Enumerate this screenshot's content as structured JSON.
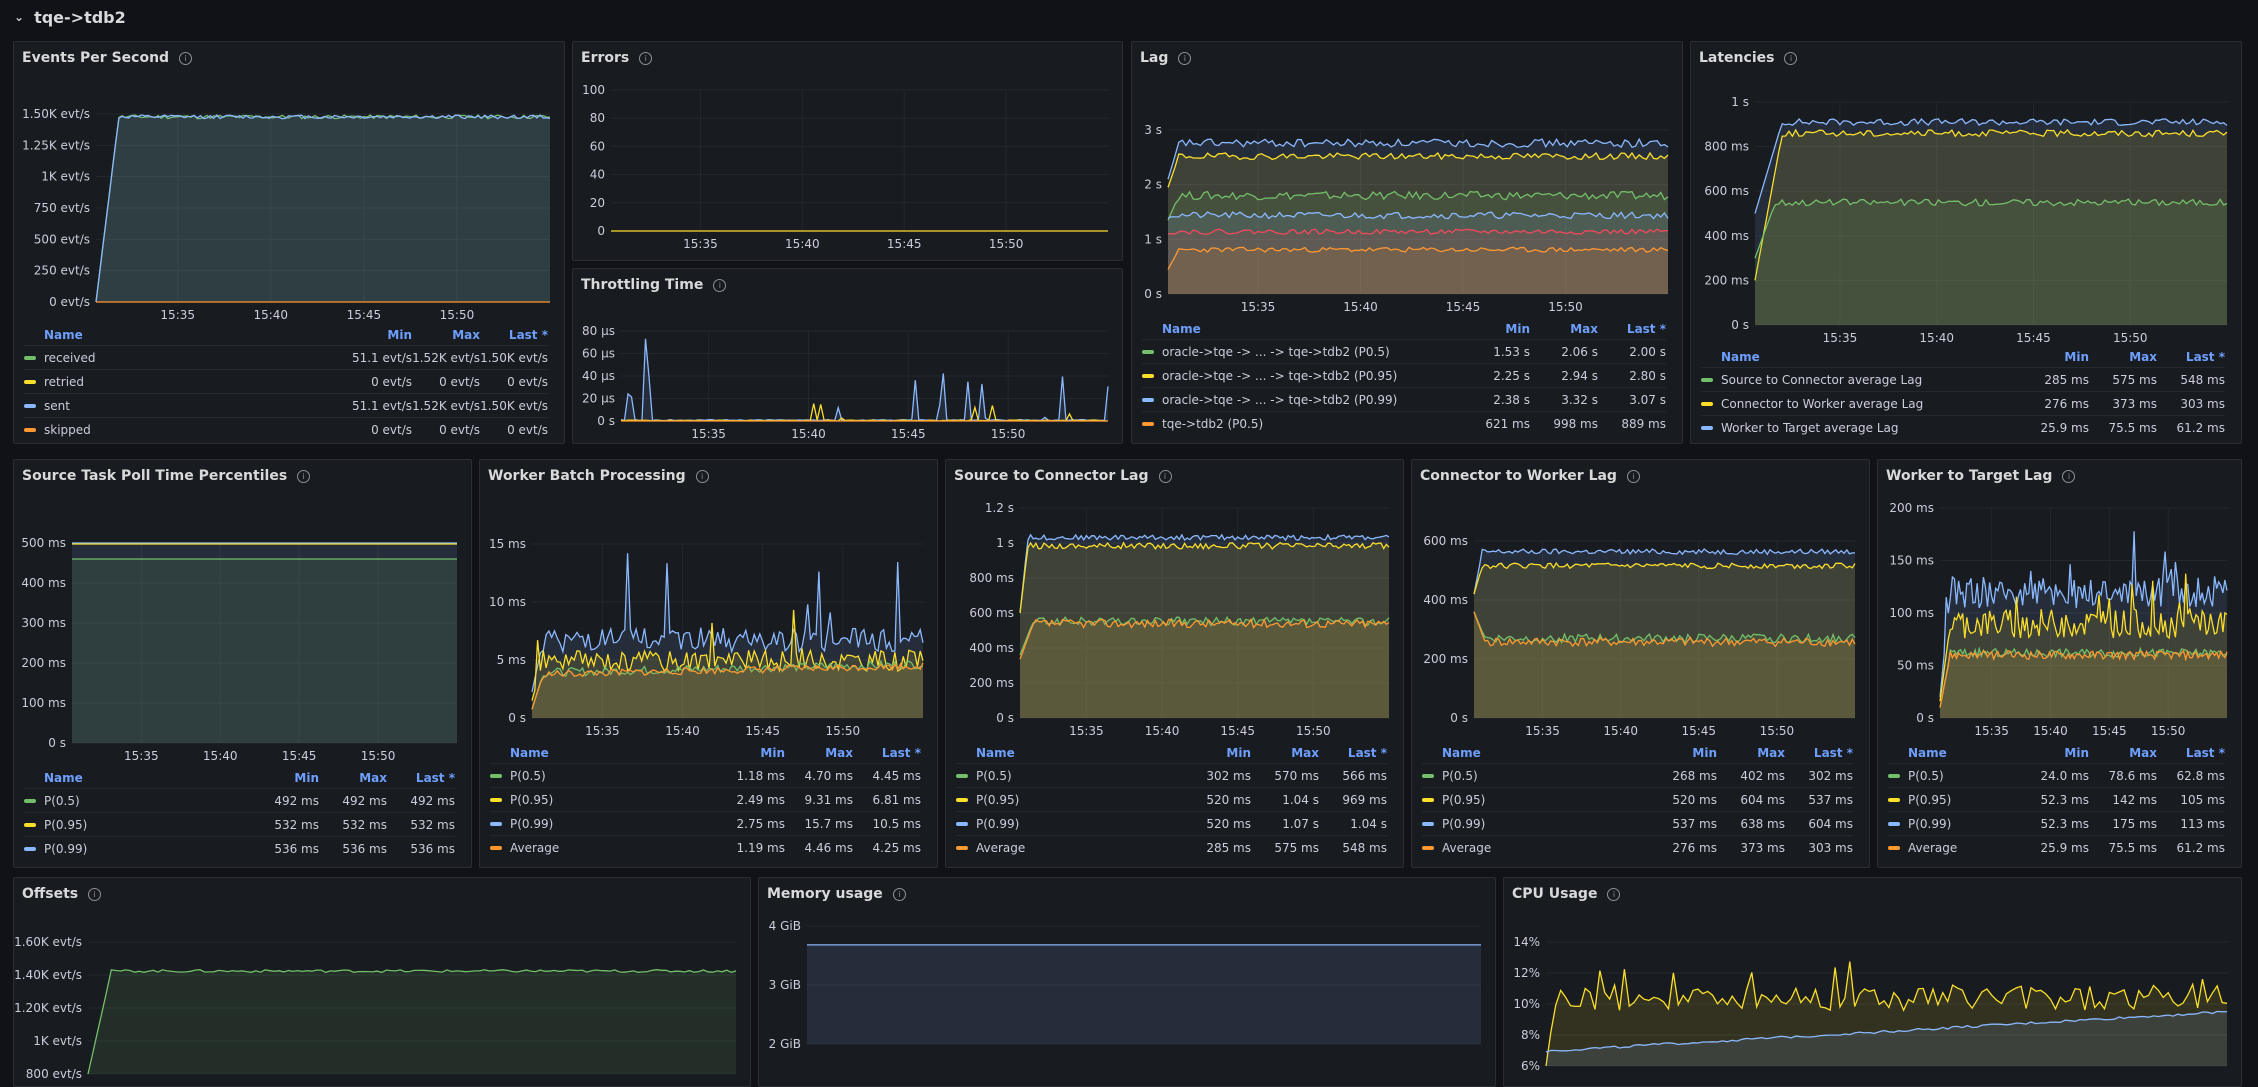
{
  "row": {
    "title": "tqe->tdb2"
  },
  "colors": {
    "green": "#73bf69",
    "yellow": "#fade2a",
    "blue": "#8ab8ff",
    "orange": "#ff9830",
    "red": "#f2495c"
  },
  "legend_headers": {
    "name": "Name",
    "min": "Min",
    "max": "Max",
    "last": "Last *"
  },
  "icons": {
    "info": "info-icon",
    "collapse": "chevron-down-icon"
  },
  "panels": {
    "eps": {
      "title": "Events Per Second",
      "yticks": [
        "1.50K evt/s",
        "1.25K evt/s",
        "1K evt/s",
        "750 evt/s",
        "500 evt/s",
        "250 evt/s",
        "0 evt/s"
      ],
      "xticks": [
        "15:35",
        "15:40",
        "15:45",
        "15:50"
      ],
      "legend": [
        {
          "name": "received",
          "min": "51.1 evt/s",
          "max": "1.52K evt/s",
          "last": "1.50K evt/s"
        },
        {
          "name": "retried",
          "min": "0 evt/s",
          "max": "0 evt/s",
          "last": "0 evt/s"
        },
        {
          "name": "sent",
          "min": "51.1 evt/s",
          "max": "1.52K evt/s",
          "last": "1.50K evt/s"
        },
        {
          "name": "skipped",
          "min": "0 evt/s",
          "max": "0 evt/s",
          "last": "0 evt/s"
        }
      ]
    },
    "errors": {
      "title": "Errors",
      "yticks": [
        "100",
        "80",
        "60",
        "40",
        "20",
        "0"
      ],
      "xticks": [
        "15:35",
        "15:40",
        "15:45",
        "15:50"
      ]
    },
    "throttling": {
      "title": "Throttling Time",
      "yticks": [
        "80 µs",
        "60 µs",
        "40 µs",
        "20 µs",
        "0 s"
      ],
      "xticks": [
        "15:35",
        "15:40",
        "15:45",
        "15:50"
      ]
    },
    "lag": {
      "title": "Lag",
      "yticks": [
        "3 s",
        "2 s",
        "1 s",
        "0 s"
      ],
      "xticks": [
        "15:35",
        "15:40",
        "15:45",
        "15:50"
      ],
      "legend": [
        {
          "name": "oracle->tqe -> ... -> tqe->tdb2 (P0.5)",
          "min": "1.53 s",
          "max": "2.06 s",
          "last": "2.00 s"
        },
        {
          "name": "oracle->tqe -> ... -> tqe->tdb2 (P0.95)",
          "min": "2.25 s",
          "max": "2.94 s",
          "last": "2.80 s"
        },
        {
          "name": "oracle->tqe -> ... -> tqe->tdb2 (P0.99)",
          "min": "2.38 s",
          "max": "3.32 s",
          "last": "3.07 s"
        },
        {
          "name": "tqe->tdb2 (P0.5)",
          "min": "621 ms",
          "max": "998 ms",
          "last": "889 ms"
        }
      ]
    },
    "latencies": {
      "title": "Latencies",
      "yticks": [
        "1 s",
        "800 ms",
        "600 ms",
        "400 ms",
        "200 ms",
        "0 s"
      ],
      "xticks": [
        "15:35",
        "15:40",
        "15:45",
        "15:50"
      ],
      "legend": [
        {
          "name": "Source to Connector average Lag",
          "min": "285 ms",
          "max": "575 ms",
          "last": "548 ms"
        },
        {
          "name": "Connector to Worker average Lag",
          "min": "276 ms",
          "max": "373 ms",
          "last": "303 ms"
        },
        {
          "name": "Worker to Target average Lag",
          "min": "25.9 ms",
          "max": "75.5 ms",
          "last": "61.2 ms"
        }
      ]
    },
    "poll": {
      "title": "Source Task Poll Time Percentiles",
      "yticks": [
        "500 ms",
        "400 ms",
        "300 ms",
        "200 ms",
        "100 ms",
        "0 s"
      ],
      "xticks": [
        "15:35",
        "15:40",
        "15:45",
        "15:50"
      ],
      "legend": [
        {
          "name": "P(0.5)",
          "min": "492 ms",
          "max": "492 ms",
          "last": "492 ms"
        },
        {
          "name": "P(0.95)",
          "min": "532 ms",
          "max": "532 ms",
          "last": "532 ms"
        },
        {
          "name": "P(0.99)",
          "min": "536 ms",
          "max": "536 ms",
          "last": "536 ms"
        }
      ]
    },
    "batch": {
      "title": "Worker Batch Processing",
      "yticks": [
        "15 ms",
        "10 ms",
        "5 ms",
        "0 s"
      ],
      "xticks": [
        "15:35",
        "15:40",
        "15:45",
        "15:50"
      ],
      "legend": [
        {
          "name": "P(0.5)",
          "min": "1.18 ms",
          "max": "4.70 ms",
          "last": "4.45 ms"
        },
        {
          "name": "P(0.95)",
          "min": "2.49 ms",
          "max": "9.31 ms",
          "last": "6.81 ms"
        },
        {
          "name": "P(0.99)",
          "min": "2.75 ms",
          "max": "15.7 ms",
          "last": "10.5 ms"
        },
        {
          "name": "Average",
          "min": "1.19 ms",
          "max": "4.46 ms",
          "last": "4.25 ms"
        }
      ]
    },
    "s2c": {
      "title": "Source to Connector Lag",
      "yticks": [
        "1.2 s",
        "1 s",
        "800 ms",
        "600 ms",
        "400 ms",
        "200 ms",
        "0 s"
      ],
      "xticks": [
        "15:35",
        "15:40",
        "15:45",
        "15:50"
      ],
      "legend": [
        {
          "name": "P(0.5)",
          "min": "302 ms",
          "max": "570 ms",
          "last": "566 ms"
        },
        {
          "name": "P(0.95)",
          "min": "520 ms",
          "max": "1.04 s",
          "last": "969 ms"
        },
        {
          "name": "P(0.99)",
          "min": "520 ms",
          "max": "1.07 s",
          "last": "1.04 s"
        },
        {
          "name": "Average",
          "min": "285 ms",
          "max": "575 ms",
          "last": "548 ms"
        }
      ]
    },
    "c2w": {
      "title": "Connector to Worker Lag",
      "yticks": [
        "600 ms",
        "400 ms",
        "200 ms",
        "0 s"
      ],
      "xticks": [
        "15:35",
        "15:40",
        "15:45",
        "15:50"
      ],
      "legend": [
        {
          "name": "P(0.5)",
          "min": "268 ms",
          "max": "402 ms",
          "last": "302 ms"
        },
        {
          "name": "P(0.95)",
          "min": "520 ms",
          "max": "604 ms",
          "last": "537 ms"
        },
        {
          "name": "P(0.99)",
          "min": "537 ms",
          "max": "638 ms",
          "last": "604 ms"
        },
        {
          "name": "Average",
          "min": "276 ms",
          "max": "373 ms",
          "last": "303 ms"
        }
      ]
    },
    "w2t": {
      "title": "Worker to Target Lag",
      "yticks": [
        "200 ms",
        "150 ms",
        "100 ms",
        "50 ms",
        "0 s"
      ],
      "xticks": [
        "15:35",
        "15:40",
        "15:45",
        "15:50"
      ],
      "legend": [
        {
          "name": "P(0.5)",
          "min": "24.0 ms",
          "max": "78.6 ms",
          "last": "62.8 ms"
        },
        {
          "name": "P(0.95)",
          "min": "52.3 ms",
          "max": "142 ms",
          "last": "105 ms"
        },
        {
          "name": "P(0.99)",
          "min": "52.3 ms",
          "max": "175 ms",
          "last": "113 ms"
        },
        {
          "name": "Average",
          "min": "25.9 ms",
          "max": "75.5 ms",
          "last": "61.2 ms"
        }
      ]
    },
    "offsets": {
      "title": "Offsets",
      "yticks": [
        "1.60K evt/s",
        "1.40K evt/s",
        "1.20K evt/s",
        "1K evt/s",
        "800 evt/s"
      ]
    },
    "memory": {
      "title": "Memory usage",
      "yticks": [
        "4 GiB",
        "3 GiB",
        "2 GiB"
      ]
    },
    "cpu": {
      "title": "CPU Usage",
      "yticks": [
        "14%",
        "12%",
        "10%",
        "8%",
        "6%"
      ]
    }
  }
}
